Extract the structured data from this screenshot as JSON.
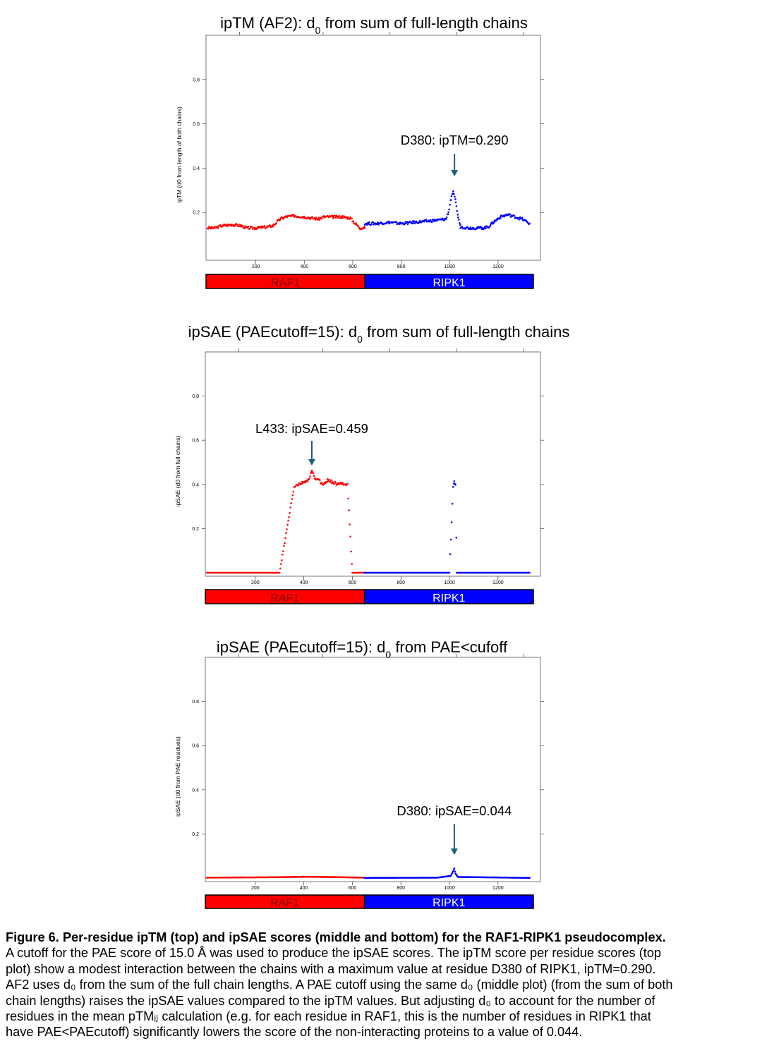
{
  "chart_data": [
    {
      "type": "scatter",
      "title_main": "ipTM (AF2): d",
      "title_sub": "0",
      "title_rest": " from sum of full-length chains",
      "ylabel": "ipTM (d0 from length of both chains)",
      "xlim": [
        0,
        1340
      ],
      "ylim": [
        0,
        1.0
      ],
      "xticks": [
        200,
        400,
        600,
        800,
        1000,
        1200
      ],
      "yticks": [
        0.2,
        0.4,
        0.6,
        0.8
      ],
      "ytick_labels": [
        "0.2",
        "0.4",
        "0.6",
        "0.8"
      ],
      "annotation": {
        "text": "D380: ipTM=0.290",
        "x": 1020,
        "y": 0.29
      },
      "chain_bar": [
        {
          "name": "RAF1",
          "start": 0,
          "end": 650,
          "color": "#ff0000"
        },
        {
          "name": "RIPK1",
          "start": 650,
          "end": 1340,
          "color": "#0000ff"
        }
      ],
      "series": [
        {
          "name": "RAF1",
          "color": "#ff0000",
          "points": [
            [
              0,
              0.13
            ],
            [
              30,
              0.13
            ],
            [
              60,
              0.14
            ],
            [
              100,
              0.145
            ],
            [
              140,
              0.14
            ],
            [
              160,
              0.13
            ],
            [
              200,
              0.13
            ],
            [
              250,
              0.135
            ],
            [
              270,
              0.14
            ],
            [
              300,
              0.17
            ],
            [
              320,
              0.18
            ],
            [
              360,
              0.185
            ],
            [
              400,
              0.18
            ],
            [
              430,
              0.175
            ],
            [
              460,
              0.17
            ],
            [
              480,
              0.18
            ],
            [
              520,
              0.18
            ],
            [
              560,
              0.18
            ],
            [
              590,
              0.175
            ],
            [
              610,
              0.15
            ],
            [
              630,
              0.13
            ],
            [
              650,
              0.13
            ]
          ]
        },
        {
          "name": "RIPK1",
          "color": "#0000ff",
          "points": [
            [
              650,
              0.15
            ],
            [
              700,
              0.15
            ],
            [
              750,
              0.155
            ],
            [
              800,
              0.15
            ],
            [
              850,
              0.155
            ],
            [
              900,
              0.16
            ],
            [
              950,
              0.165
            ],
            [
              985,
              0.17
            ],
            [
              995,
              0.2
            ],
            [
              1005,
              0.26
            ],
            [
              1015,
              0.29
            ],
            [
              1025,
              0.25
            ],
            [
              1035,
              0.18
            ],
            [
              1045,
              0.135
            ],
            [
              1080,
              0.13
            ],
            [
              1140,
              0.13
            ],
            [
              1160,
              0.135
            ],
            [
              1185,
              0.16
            ],
            [
              1210,
              0.18
            ],
            [
              1240,
              0.19
            ],
            [
              1270,
              0.18
            ],
            [
              1300,
              0.17
            ],
            [
              1330,
              0.15
            ]
          ]
        }
      ]
    },
    {
      "type": "scatter",
      "title_main": "ipSAE (PAEcutoff=15): d",
      "title_sub": "0",
      "title_rest": " from sum of full-length chains",
      "ylabel": "ipSAE (d0 from full chains)",
      "xlim": [
        0,
        1340
      ],
      "ylim": [
        0,
        1.0
      ],
      "xticks": [
        200,
        400,
        600,
        800,
        1000,
        1200
      ],
      "yticks": [
        0.2,
        0.4,
        0.6,
        0.8
      ],
      "ytick_labels": [
        "0.2",
        "0.4",
        "0.6",
        "0.8"
      ],
      "annotation": {
        "text": "L433: ipSAE=0.459",
        "x": 433,
        "y": 0.459
      },
      "chain_bar": [
        {
          "name": "RAF1",
          "start": 0,
          "end": 650,
          "color": "#ff0000"
        },
        {
          "name": "RIPK1",
          "start": 650,
          "end": 1340,
          "color": "#0000ff"
        }
      ],
      "series": [
        {
          "name": "RAF1",
          "color": "#ff0000",
          "points": [
            [
              0,
              0.0
            ],
            [
              300,
              0.0
            ],
            [
              360,
              0.39
            ],
            [
              380,
              0.4
            ],
            [
              400,
              0.41
            ],
            [
              420,
              0.42
            ],
            [
              433,
              0.459
            ],
            [
              445,
              0.43
            ],
            [
              460,
              0.42
            ],
            [
              480,
              0.4
            ],
            [
              500,
              0.42
            ],
            [
              520,
              0.41
            ],
            [
              540,
              0.4
            ],
            [
              560,
              0.405
            ],
            [
              580,
              0.4
            ],
            [
              600,
              0.0
            ],
            [
              650,
              0.0
            ]
          ]
        },
        {
          "name": "RIPK1",
          "color": "#0000ff",
          "points": [
            [
              650,
              0.0
            ],
            [
              1000,
              0.0
            ],
            [
              1015,
              0.39
            ],
            [
              1020,
              0.41
            ],
            [
              1025,
              0.4
            ],
            [
              1030,
              0.0
            ],
            [
              1330,
              0.0
            ]
          ]
        }
      ]
    },
    {
      "type": "scatter",
      "title_main": "ipSAE (PAEcutoff=15): d",
      "title_sub": "0",
      "title_rest": " from PAE<cufoff",
      "ylabel": "ipSAE (d0 from PAE residues)",
      "xlim": [
        0,
        1340
      ],
      "ylim": [
        0,
        1.0
      ],
      "xticks": [
        200,
        400,
        600,
        800,
        1000,
        1200
      ],
      "yticks": [
        0.2,
        0.4,
        0.6,
        0.8
      ],
      "ytick_labels": [
        "0.2",
        "0.4",
        "0.6",
        "0.8"
      ],
      "annotation": {
        "text": "D380: ipSAE=0.044",
        "x": 1020,
        "y": 0.044
      },
      "chain_bar": [
        {
          "name": "RAF1",
          "start": 0,
          "end": 650,
          "color": "#ff0000"
        },
        {
          "name": "RIPK1",
          "start": 650,
          "end": 1340,
          "color": "#0000ff"
        }
      ],
      "series": [
        {
          "name": "RAF1",
          "color": "#ff0000",
          "points": [
            [
              0,
              0.002
            ],
            [
              300,
              0.004
            ],
            [
              400,
              0.006
            ],
            [
              500,
              0.005
            ],
            [
              600,
              0.003
            ],
            [
              650,
              0.002
            ]
          ]
        },
        {
          "name": "RIPK1",
          "color": "#0000ff",
          "points": [
            [
              650,
              0.001
            ],
            [
              950,
              0.002
            ],
            [
              1005,
              0.01
            ],
            [
              1015,
              0.03
            ],
            [
              1020,
              0.044
            ],
            [
              1025,
              0.02
            ],
            [
              1035,
              0.005
            ],
            [
              1330,
              0.001
            ]
          ]
        }
      ]
    }
  ],
  "caption": {
    "title": "Figure 6. Per-residue ipTM (top) and ipSAE scores (middle and bottom) for the RAF1-RIPK1 pseudocomplex.",
    "lines": [
      "A cutoff for the PAE score of 15.0 Å was used to produce the ipSAE scores. The ipTM score per residue scores (top",
      "plot) show a modest interaction between the chains with a maximum value at residue D380 of RIPK1, ipTM=0.290.",
      "AF2 uses d₀ from the sum of the full chain lengths. A PAE cutoff using the same d₀ (middle plot) (from the sum of both",
      "chain lengths) raises the ipSAE values compared to the ipTM values. But adjusting d₀ to account for the number of",
      "residues in the mean pTMᵢⱼ calculation (e.g. for each residue in RAF1, this is the number of residues in RIPK1 that",
      "have PAE<PAEcutoff) significantly lowers the score of the non-interacting proteins to a value of 0.044."
    ]
  }
}
